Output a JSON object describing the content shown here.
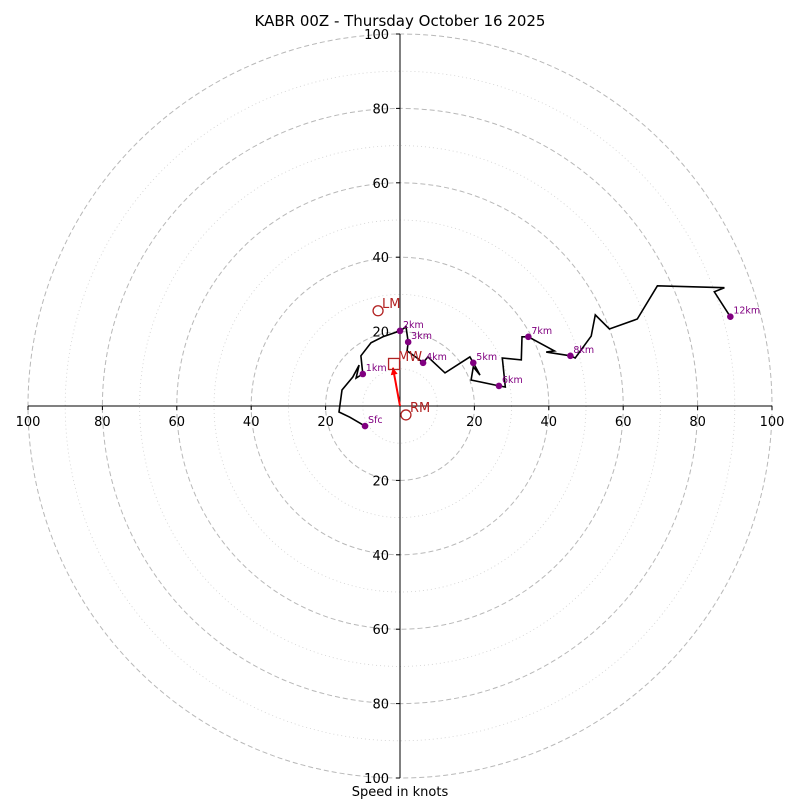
{
  "chart_data": {
    "type": "line",
    "subtype": "hodograph",
    "title": "KABR 00Z - Thursday October 16 2025",
    "xlabel": "Speed in knots",
    "ylabel": "",
    "xlim": [
      -100,
      100
    ],
    "ylim": [
      -100,
      100
    ],
    "grid": true,
    "ring_major_step": 20,
    "ring_minor_step": 10,
    "x_tick_labels": [
      {
        "value": -100,
        "label": "100"
      },
      {
        "value": -80,
        "label": "80"
      },
      {
        "value": -60,
        "label": "60"
      },
      {
        "value": -40,
        "label": "40"
      },
      {
        "value": -20,
        "label": "20"
      },
      {
        "value": 20,
        "label": "20"
      },
      {
        "value": 40,
        "label": "40"
      },
      {
        "value": 60,
        "label": "60"
      },
      {
        "value": 80,
        "label": "80"
      },
      {
        "value": 100,
        "label": "100"
      }
    ],
    "y_tick_labels": [
      {
        "value": 100,
        "label": "100"
      },
      {
        "value": 80,
        "label": "80"
      },
      {
        "value": 60,
        "label": "60"
      },
      {
        "value": 40,
        "label": "40"
      },
      {
        "value": 20,
        "label": "20"
      },
      {
        "value": -20,
        "label": "20"
      },
      {
        "value": -40,
        "label": "40"
      },
      {
        "value": -60,
        "label": "60"
      },
      {
        "value": -80,
        "label": "80"
      },
      {
        "value": -100,
        "label": "100"
      }
    ],
    "series": [
      {
        "name": "wind profile",
        "color": "#000000",
        "u": [
          -9.4,
          -13.5,
          -16.4,
          -15.6,
          -12.7,
          -11.0,
          -11.8,
          -10.0,
          -10.5,
          -7.8,
          -4.6,
          0.0,
          1.6,
          2.2,
          1.9,
          4.6,
          6.2,
          7.5,
          12.1,
          18.8,
          19.7,
          21.5,
          19.7,
          19.1,
          26.6,
          28.3,
          27.5,
          32.6,
          32.8,
          34.5,
          41.5,
          39.3,
          45.8,
          47.1,
          51.4,
          52.5,
          56.3,
          63.8,
          69.2,
          87.2,
          84.5,
          88.8
        ],
        "v": [
          -5.4,
          -3.0,
          -1.6,
          4.3,
          7.8,
          11.0,
          7.5,
          8.6,
          13.5,
          17.0,
          18.6,
          20.2,
          21.3,
          17.2,
          14.8,
          12.9,
          11.6,
          13.2,
          8.9,
          13.2,
          11.6,
          8.3,
          10.5,
          7.0,
          5.4,
          5.1,
          12.9,
          12.4,
          18.6,
          18.6,
          14.8,
          14.5,
          13.5,
          12.9,
          18.8,
          24.5,
          20.7,
          23.4,
          32.3,
          31.8,
          30.7,
          24.0
        ]
      }
    ],
    "height_markers": [
      {
        "label": "Sfc",
        "u": -9.4,
        "v": -5.4
      },
      {
        "label": "1km",
        "u": -10.0,
        "v": 8.6
      },
      {
        "label": "2km",
        "u": 0.0,
        "v": 20.2
      },
      {
        "label": "3km",
        "u": 2.2,
        "v": 17.2
      },
      {
        "label": "4km",
        "u": 6.2,
        "v": 11.6
      },
      {
        "label": "5km",
        "u": 19.7,
        "v": 11.6
      },
      {
        "label": "6km",
        "u": 26.6,
        "v": 5.4
      },
      {
        "label": "7km",
        "u": 34.5,
        "v": 18.6
      },
      {
        "label": "8km",
        "u": 45.8,
        "v": 13.5
      },
      {
        "label": "12km",
        "u": 88.8,
        "v": 24.0
      }
    ],
    "storm_motion": [
      {
        "label": "LM",
        "marker": "circle",
        "u": -5.9,
        "v": 25.6
      },
      {
        "label": "MW",
        "marker": "square",
        "u": -1.6,
        "v": 11.3
      },
      {
        "label": "RM",
        "marker": "circle",
        "u": 1.6,
        "v": -2.4
      }
    ],
    "storm_motion_vector": {
      "u": -1.9,
      "v": 10.3,
      "color": "#ff0000"
    },
    "colors": {
      "profile": "#000000",
      "height_marker": "#800080",
      "storm_label": "#b22222",
      "storm_vector": "#ff0000",
      "grid": "#b0b0b0"
    }
  }
}
